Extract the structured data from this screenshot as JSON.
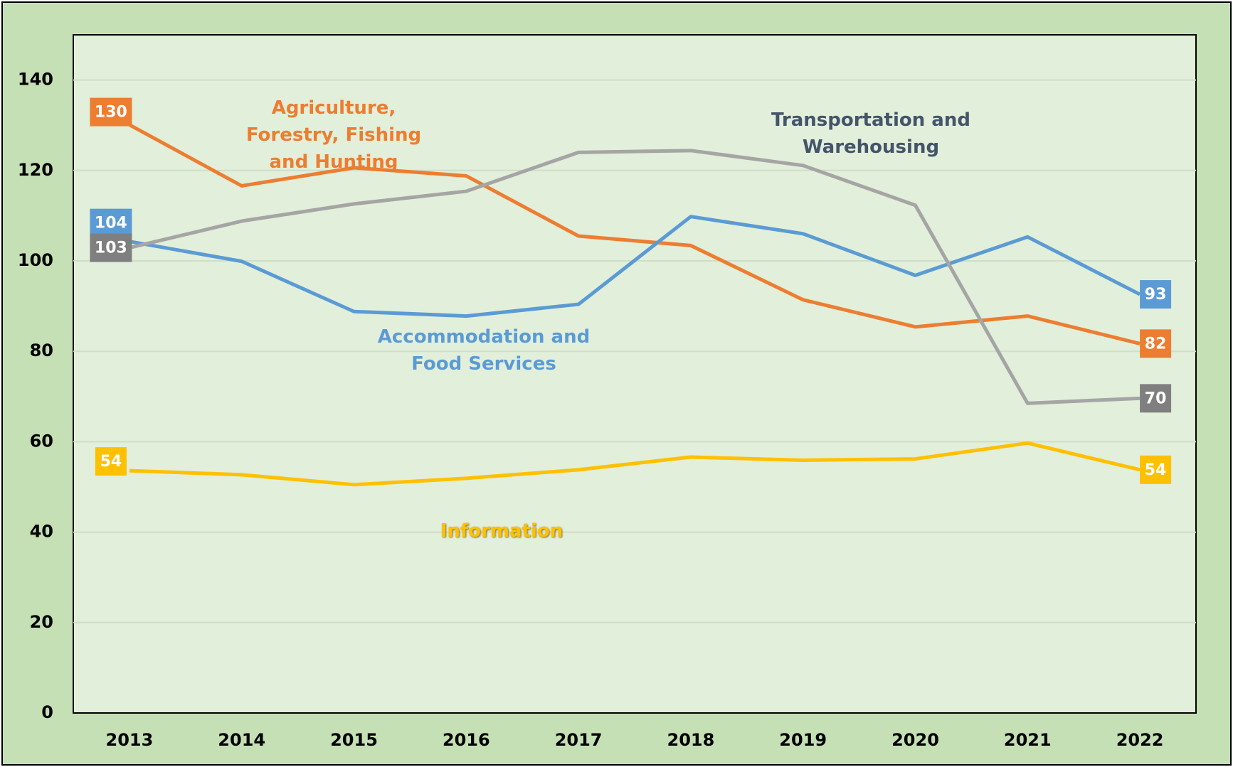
{
  "chart_data": {
    "type": "line",
    "categories": [
      "2013",
      "2014",
      "2015",
      "2016",
      "2017",
      "2018",
      "2019",
      "2020",
      "2021",
      "2022"
    ],
    "ylim": [
      0,
      150
    ],
    "yticks": [
      0,
      20,
      40,
      60,
      80,
      100,
      120,
      140
    ],
    "grid": true,
    "series": [
      {
        "name": "Agriculture, Forestry, Fishing and Hunting",
        "color": "#ed7d31",
        "label_color": "#ed7d31",
        "values": [
          130.1,
          116.6,
          120.6,
          118.8,
          105.5,
          103.4,
          91.4,
          85.4,
          87.8,
          81.7
        ],
        "value_labels": [
          "130",
          null,
          null,
          null,
          null,
          null,
          null,
          null,
          null,
          "82"
        ]
      },
      {
        "name": "Accommodation and Food Services",
        "color": "#5b9bd5",
        "label_color": "#5b9bd5",
        "values": [
          104.3,
          99.9,
          88.8,
          87.8,
          90.4,
          109.8,
          106.0,
          96.8,
          105.3,
          92.6
        ],
        "value_labels": [
          "104",
          null,
          null,
          null,
          null,
          null,
          null,
          null,
          null,
          "93"
        ]
      },
      {
        "name": "Transportation and Warehousing",
        "color": "#a5a5a5",
        "label_color": "#44546a",
        "box_color": "#7f7f7f",
        "values": [
          102.9,
          108.8,
          112.6,
          115.4,
          124.0,
          124.4,
          121.1,
          112.3,
          68.5,
          69.6
        ],
        "value_labels": [
          "103",
          null,
          null,
          null,
          null,
          null,
          null,
          null,
          null,
          "70"
        ]
      },
      {
        "name": "Information",
        "color": "#ffc000",
        "label_color": "#ffc000",
        "values": [
          53.6,
          52.7,
          50.5,
          51.9,
          53.8,
          56.6,
          55.9,
          56.2,
          59.7,
          53.8
        ],
        "value_labels": [
          "54",
          null,
          null,
          null,
          null,
          null,
          null,
          null,
          null,
          "54"
        ]
      }
    ]
  }
}
